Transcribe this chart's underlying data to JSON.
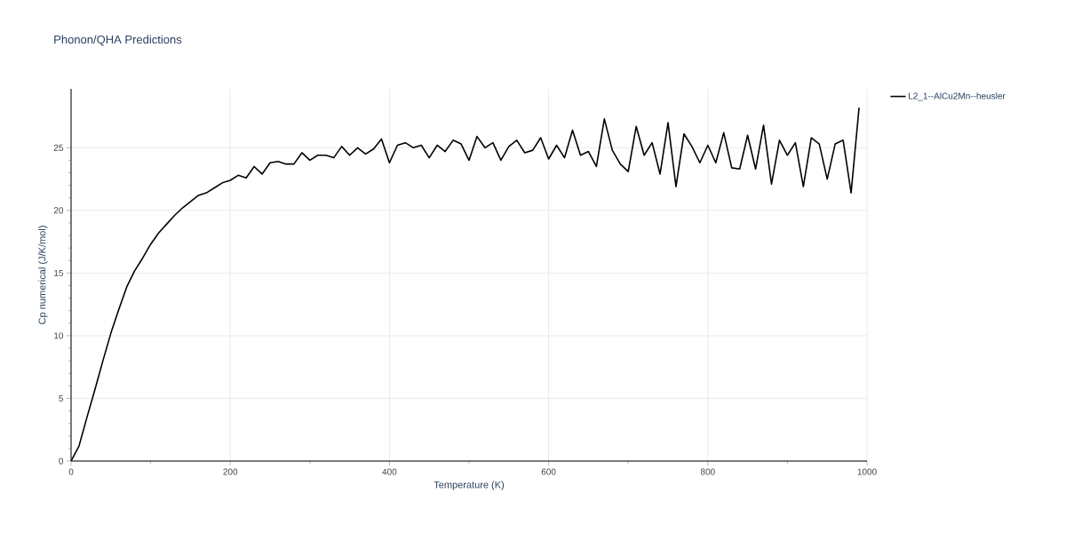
{
  "chart_data": {
    "type": "line",
    "title": "Phonon/QHA Predictions",
    "xlabel": "Temperature (K)",
    "ylabel": "Cp numerical (J/K/mol)",
    "x": [
      0,
      10,
      20,
      30,
      40,
      50,
      60,
      70,
      80,
      90,
      100,
      110,
      120,
      130,
      140,
      150,
      160,
      170,
      180,
      190,
      200,
      210,
      220,
      230,
      240,
      250,
      260,
      270,
      280,
      290,
      300,
      310,
      320,
      330,
      340,
      350,
      360,
      370,
      380,
      390,
      400,
      410,
      420,
      430,
      440,
      450,
      460,
      470,
      480,
      490,
      500,
      510,
      520,
      530,
      540,
      550,
      560,
      570,
      580,
      590,
      600,
      610,
      620,
      630,
      640,
      650,
      660,
      670,
      680,
      690,
      700,
      710,
      720,
      730,
      740,
      750,
      760,
      770,
      780,
      790,
      800,
      810,
      820,
      830,
      840,
      850,
      860,
      870,
      880,
      890,
      900,
      910,
      920,
      930,
      940,
      950,
      960,
      970,
      980,
      990
    ],
    "series": [
      {
        "name": "L2_1--AlCu2Mn--heusler",
        "color": "#000000",
        "values": [
          0,
          1.2,
          3.5,
          5.7,
          8.0,
          10.2,
          12.1,
          13.9,
          15.2,
          16.2,
          17.3,
          18.2,
          18.9,
          19.6,
          20.2,
          20.7,
          21.2,
          21.4,
          21.8,
          22.2,
          22.4,
          22.8,
          22.6,
          23.5,
          22.9,
          23.8,
          23.9,
          23.7,
          23.7,
          24.6,
          24.0,
          24.4,
          24.4,
          24.2,
          25.1,
          24.4,
          25.0,
          24.5,
          24.9,
          25.7,
          23.8,
          25.2,
          25.4,
          25.0,
          25.2,
          24.2,
          25.2,
          24.7,
          25.6,
          25.3,
          24.0,
          25.9,
          25.0,
          25.4,
          24.0,
          25.1,
          25.6,
          24.6,
          24.8,
          25.8,
          24.1,
          25.2,
          24.2,
          26.4,
          24.4,
          24.7,
          23.5,
          27.3,
          24.8,
          23.7,
          23.1,
          26.7,
          24.4,
          25.4,
          22.9,
          27.0,
          21.9,
          26.1,
          25.1,
          23.8,
          25.2,
          23.8,
          26.2,
          23.4,
          23.3,
          26.0,
          23.3,
          26.8,
          22.1,
          25.6,
          24.4,
          25.4,
          21.9,
          25.8,
          25.3,
          22.5,
          25.3,
          25.6,
          21.4,
          28.2
        ]
      }
    ],
    "xlim": [
      0,
      1000
    ],
    "ylim": [
      0,
      29.7
    ],
    "xticks": [
      0,
      200,
      400,
      600,
      800,
      1000
    ],
    "yticks": [
      0,
      5,
      10,
      15,
      20,
      25
    ],
    "grid": true,
    "legend": "top right",
    "marker": "none",
    "line_style": "solid"
  }
}
